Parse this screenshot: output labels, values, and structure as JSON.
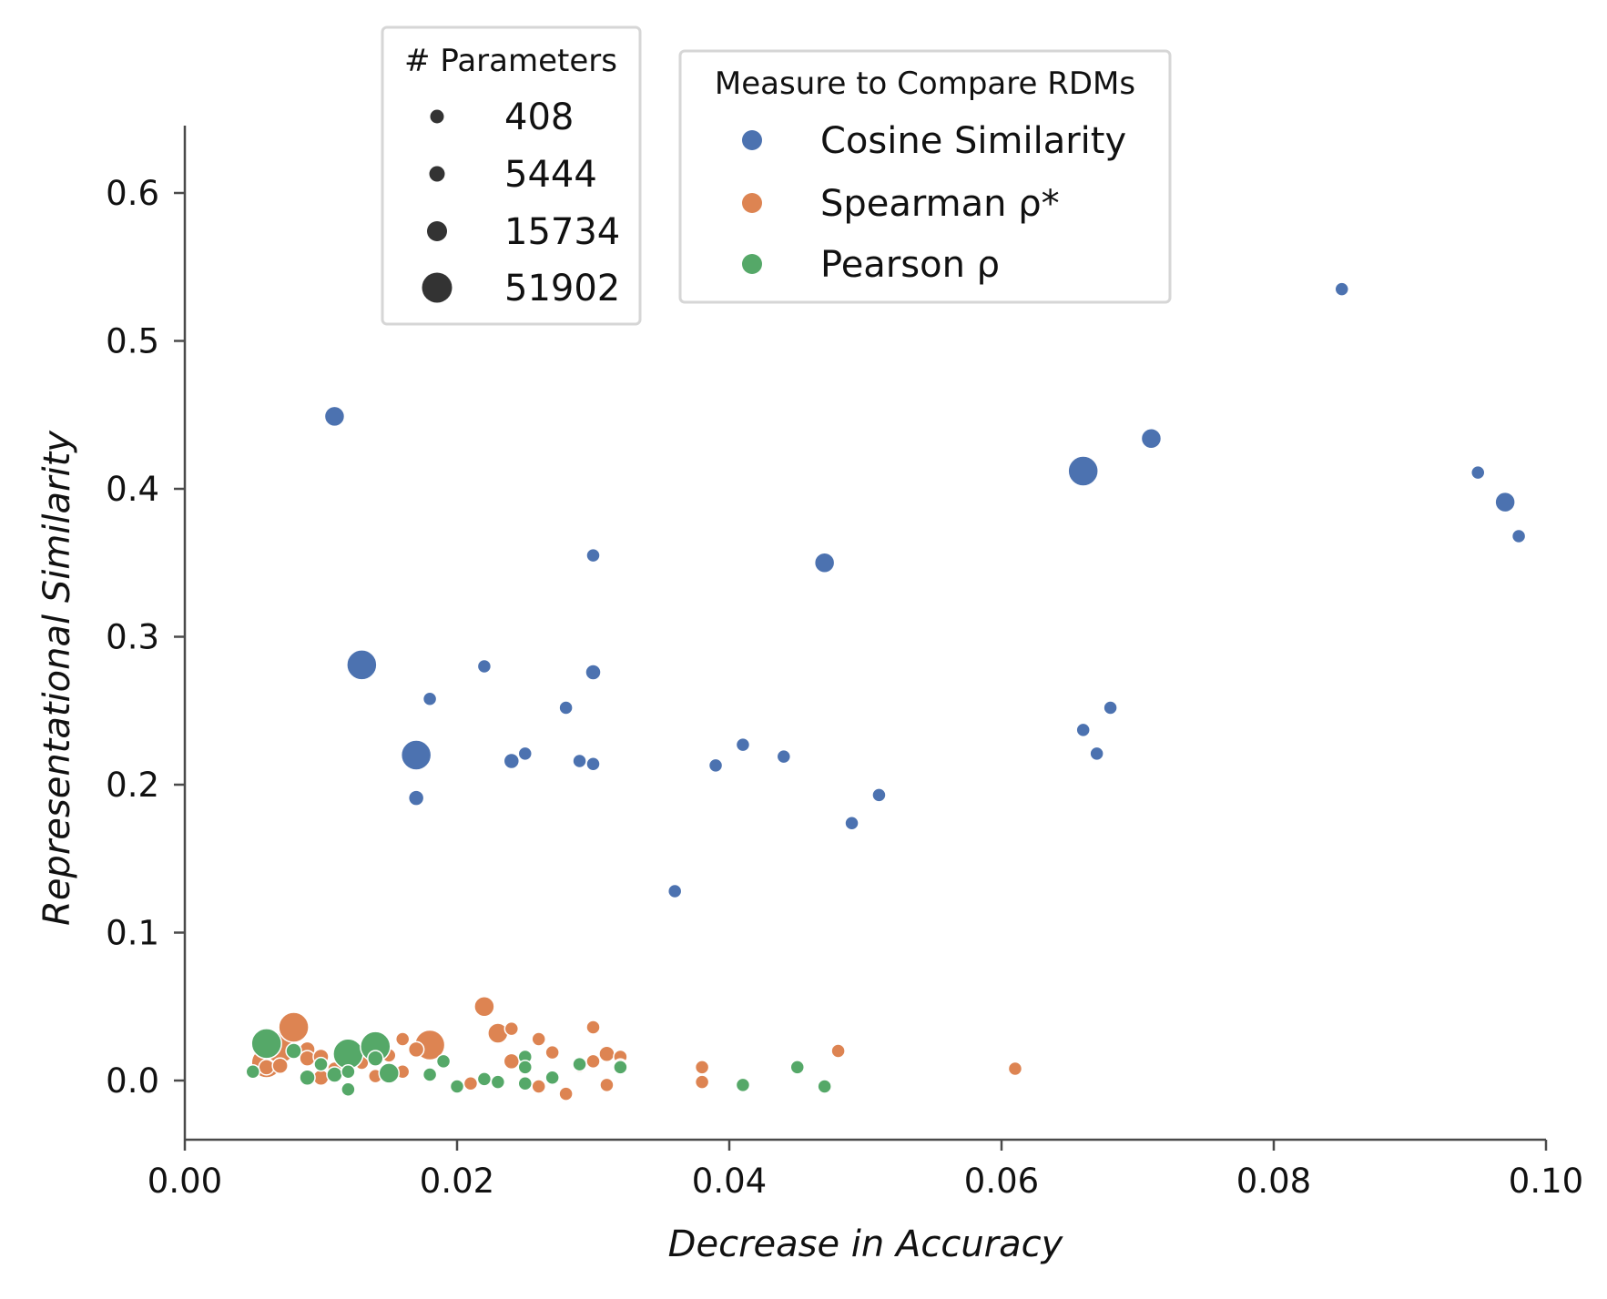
{
  "chart_data": {
    "type": "scatter",
    "xlabel": "Decrease in Accuracy",
    "ylabel": "Representational Similarity",
    "xlim": [
      0.0,
      0.1
    ],
    "ylim": [
      -0.04,
      0.645
    ],
    "xticks": [
      0.0,
      0.02,
      0.04,
      0.06,
      0.08,
      0.1
    ],
    "xtick_labels": [
      "0.00",
      "0.02",
      "0.04",
      "0.06",
      "0.08",
      "0.10"
    ],
    "yticks": [
      0.0,
      0.1,
      0.2,
      0.3,
      0.4,
      0.5,
      0.6
    ],
    "ytick_labels": [
      "0.0",
      "0.1",
      "0.2",
      "0.3",
      "0.4",
      "0.5",
      "0.6"
    ],
    "grid": false,
    "size_legend": {
      "title": "# Parameters",
      "placement": "top-center",
      "entries": [
        {
          "label": "408",
          "value": 408
        },
        {
          "label": "5444",
          "value": 5444
        },
        {
          "label": "15734",
          "value": 15734
        },
        {
          "label": "51902",
          "value": 51902
        }
      ]
    },
    "hue_legend": {
      "title": "Measure to Compare RDMs",
      "placement": "top-center",
      "entries": [
        {
          "label": "Cosine Similarity",
          "color": "#4c72b0"
        },
        {
          "label": "Spearman ρ*",
          "color": "#dd8452"
        },
        {
          "label": "Pearson ρ",
          "color": "#55a868"
        }
      ]
    },
    "series": [
      {
        "name": "Cosine Similarity",
        "color": "#4c72b0",
        "points": [
          {
            "x": 0.011,
            "y": 0.449,
            "params": 15734
          },
          {
            "x": 0.013,
            "y": 0.281,
            "params": 51902
          },
          {
            "x": 0.017,
            "y": 0.22,
            "params": 51902
          },
          {
            "x": 0.017,
            "y": 0.191,
            "params": 5444
          },
          {
            "x": 0.018,
            "y": 0.258,
            "params": 408
          },
          {
            "x": 0.022,
            "y": 0.28,
            "params": 408
          },
          {
            "x": 0.024,
            "y": 0.216,
            "params": 5444
          },
          {
            "x": 0.025,
            "y": 0.221,
            "params": 408
          },
          {
            "x": 0.028,
            "y": 0.252,
            "params": 408
          },
          {
            "x": 0.029,
            "y": 0.216,
            "params": 408
          },
          {
            "x": 0.03,
            "y": 0.355,
            "params": 408
          },
          {
            "x": 0.03,
            "y": 0.276,
            "params": 5444
          },
          {
            "x": 0.03,
            "y": 0.214,
            "params": 408
          },
          {
            "x": 0.036,
            "y": 0.128,
            "params": 408
          },
          {
            "x": 0.039,
            "y": 0.213,
            "params": 408
          },
          {
            "x": 0.041,
            "y": 0.227,
            "params": 408
          },
          {
            "x": 0.044,
            "y": 0.219,
            "params": 408
          },
          {
            "x": 0.047,
            "y": 0.35,
            "params": 15734
          },
          {
            "x": 0.049,
            "y": 0.174,
            "params": 408
          },
          {
            "x": 0.051,
            "y": 0.193,
            "params": 408
          },
          {
            "x": 0.066,
            "y": 0.412,
            "params": 51902
          },
          {
            "x": 0.066,
            "y": 0.237,
            "params": 408
          },
          {
            "x": 0.067,
            "y": 0.221,
            "params": 408
          },
          {
            "x": 0.068,
            "y": 0.252,
            "params": 408
          },
          {
            "x": 0.071,
            "y": 0.434,
            "params": 15734
          },
          {
            "x": 0.085,
            "y": 0.535,
            "params": 408
          },
          {
            "x": 0.095,
            "y": 0.411,
            "params": 408
          },
          {
            "x": 0.097,
            "y": 0.391,
            "params": 15734
          },
          {
            "x": 0.098,
            "y": 0.368,
            "params": 408
          }
        ]
      },
      {
        "name": "Spearman ρ*",
        "color": "#dd8452",
        "points": [
          {
            "x": 0.006,
            "y": 0.012,
            "params": 51902
          },
          {
            "x": 0.006,
            "y": 0.009,
            "params": 5444
          },
          {
            "x": 0.007,
            "y": 0.022,
            "params": 51902
          },
          {
            "x": 0.007,
            "y": 0.01,
            "params": 5444
          },
          {
            "x": 0.008,
            "y": 0.036,
            "params": 51902
          },
          {
            "x": 0.009,
            "y": 0.021,
            "params": 5444
          },
          {
            "x": 0.009,
            "y": 0.015,
            "params": 5444
          },
          {
            "x": 0.01,
            "y": 0.002,
            "params": 5444
          },
          {
            "x": 0.01,
            "y": 0.016,
            "params": 5444
          },
          {
            "x": 0.011,
            "y": 0.008,
            "params": 408
          },
          {
            "x": 0.012,
            "y": 0.015,
            "params": 5444
          },
          {
            "x": 0.013,
            "y": 0.012,
            "params": 408
          },
          {
            "x": 0.014,
            "y": 0.003,
            "params": 408
          },
          {
            "x": 0.015,
            "y": 0.017,
            "params": 408
          },
          {
            "x": 0.016,
            "y": 0.028,
            "params": 408
          },
          {
            "x": 0.016,
            "y": 0.006,
            "params": 408
          },
          {
            "x": 0.017,
            "y": 0.021,
            "params": 5444
          },
          {
            "x": 0.018,
            "y": 0.024,
            "params": 51902
          },
          {
            "x": 0.021,
            "y": -0.002,
            "params": 408
          },
          {
            "x": 0.022,
            "y": 0.05,
            "params": 15734
          },
          {
            "x": 0.023,
            "y": 0.032,
            "params": 15734
          },
          {
            "x": 0.024,
            "y": 0.035,
            "params": 408
          },
          {
            "x": 0.024,
            "y": 0.013,
            "params": 5444
          },
          {
            "x": 0.026,
            "y": 0.028,
            "params": 408
          },
          {
            "x": 0.026,
            "y": -0.004,
            "params": 408
          },
          {
            "x": 0.027,
            "y": 0.019,
            "params": 408
          },
          {
            "x": 0.028,
            "y": -0.009,
            "params": 408
          },
          {
            "x": 0.029,
            "y": 0.01,
            "params": 408
          },
          {
            "x": 0.03,
            "y": 0.036,
            "params": 408
          },
          {
            "x": 0.03,
            "y": 0.013,
            "params": 408
          },
          {
            "x": 0.031,
            "y": 0.018,
            "params": 5444
          },
          {
            "x": 0.031,
            "y": -0.003,
            "params": 408
          },
          {
            "x": 0.032,
            "y": 0.016,
            "params": 408
          },
          {
            "x": 0.032,
            "y": 0.01,
            "params": 408
          },
          {
            "x": 0.038,
            "y": 0.009,
            "params": 408
          },
          {
            "x": 0.038,
            "y": -0.001,
            "params": 408
          },
          {
            "x": 0.048,
            "y": 0.02,
            "params": 408
          },
          {
            "x": 0.061,
            "y": 0.008,
            "params": 408
          }
        ]
      },
      {
        "name": "Pearson ρ",
        "color": "#55a868",
        "points": [
          {
            "x": 0.005,
            "y": 0.006,
            "params": 408
          },
          {
            "x": 0.006,
            "y": 0.025,
            "params": 51902
          },
          {
            "x": 0.008,
            "y": 0.02,
            "params": 5444
          },
          {
            "x": 0.009,
            "y": 0.002,
            "params": 5444
          },
          {
            "x": 0.01,
            "y": 0.011,
            "params": 408
          },
          {
            "x": 0.011,
            "y": 0.004,
            "params": 5444
          },
          {
            "x": 0.012,
            "y": 0.018,
            "params": 51902
          },
          {
            "x": 0.012,
            "y": -0.006,
            "params": 408
          },
          {
            "x": 0.012,
            "y": 0.006,
            "params": 408
          },
          {
            "x": 0.014,
            "y": 0.023,
            "params": 51902
          },
          {
            "x": 0.014,
            "y": 0.015,
            "params": 5444
          },
          {
            "x": 0.015,
            "y": 0.005,
            "params": 15734
          },
          {
            "x": 0.018,
            "y": 0.004,
            "params": 408
          },
          {
            "x": 0.019,
            "y": 0.013,
            "params": 408
          },
          {
            "x": 0.02,
            "y": -0.004,
            "params": 408
          },
          {
            "x": 0.022,
            "y": 0.001,
            "params": 408
          },
          {
            "x": 0.023,
            "y": -0.001,
            "params": 408
          },
          {
            "x": 0.025,
            "y": 0.016,
            "params": 408
          },
          {
            "x": 0.025,
            "y": 0.009,
            "params": 408
          },
          {
            "x": 0.025,
            "y": -0.002,
            "params": 408
          },
          {
            "x": 0.027,
            "y": 0.002,
            "params": 408
          },
          {
            "x": 0.029,
            "y": 0.011,
            "params": 408
          },
          {
            "x": 0.032,
            "y": 0.009,
            "params": 408
          },
          {
            "x": 0.041,
            "y": -0.003,
            "params": 408
          },
          {
            "x": 0.045,
            "y": 0.009,
            "params": 408
          },
          {
            "x": 0.047,
            "y": -0.004,
            "params": 408
          }
        ]
      }
    ]
  }
}
